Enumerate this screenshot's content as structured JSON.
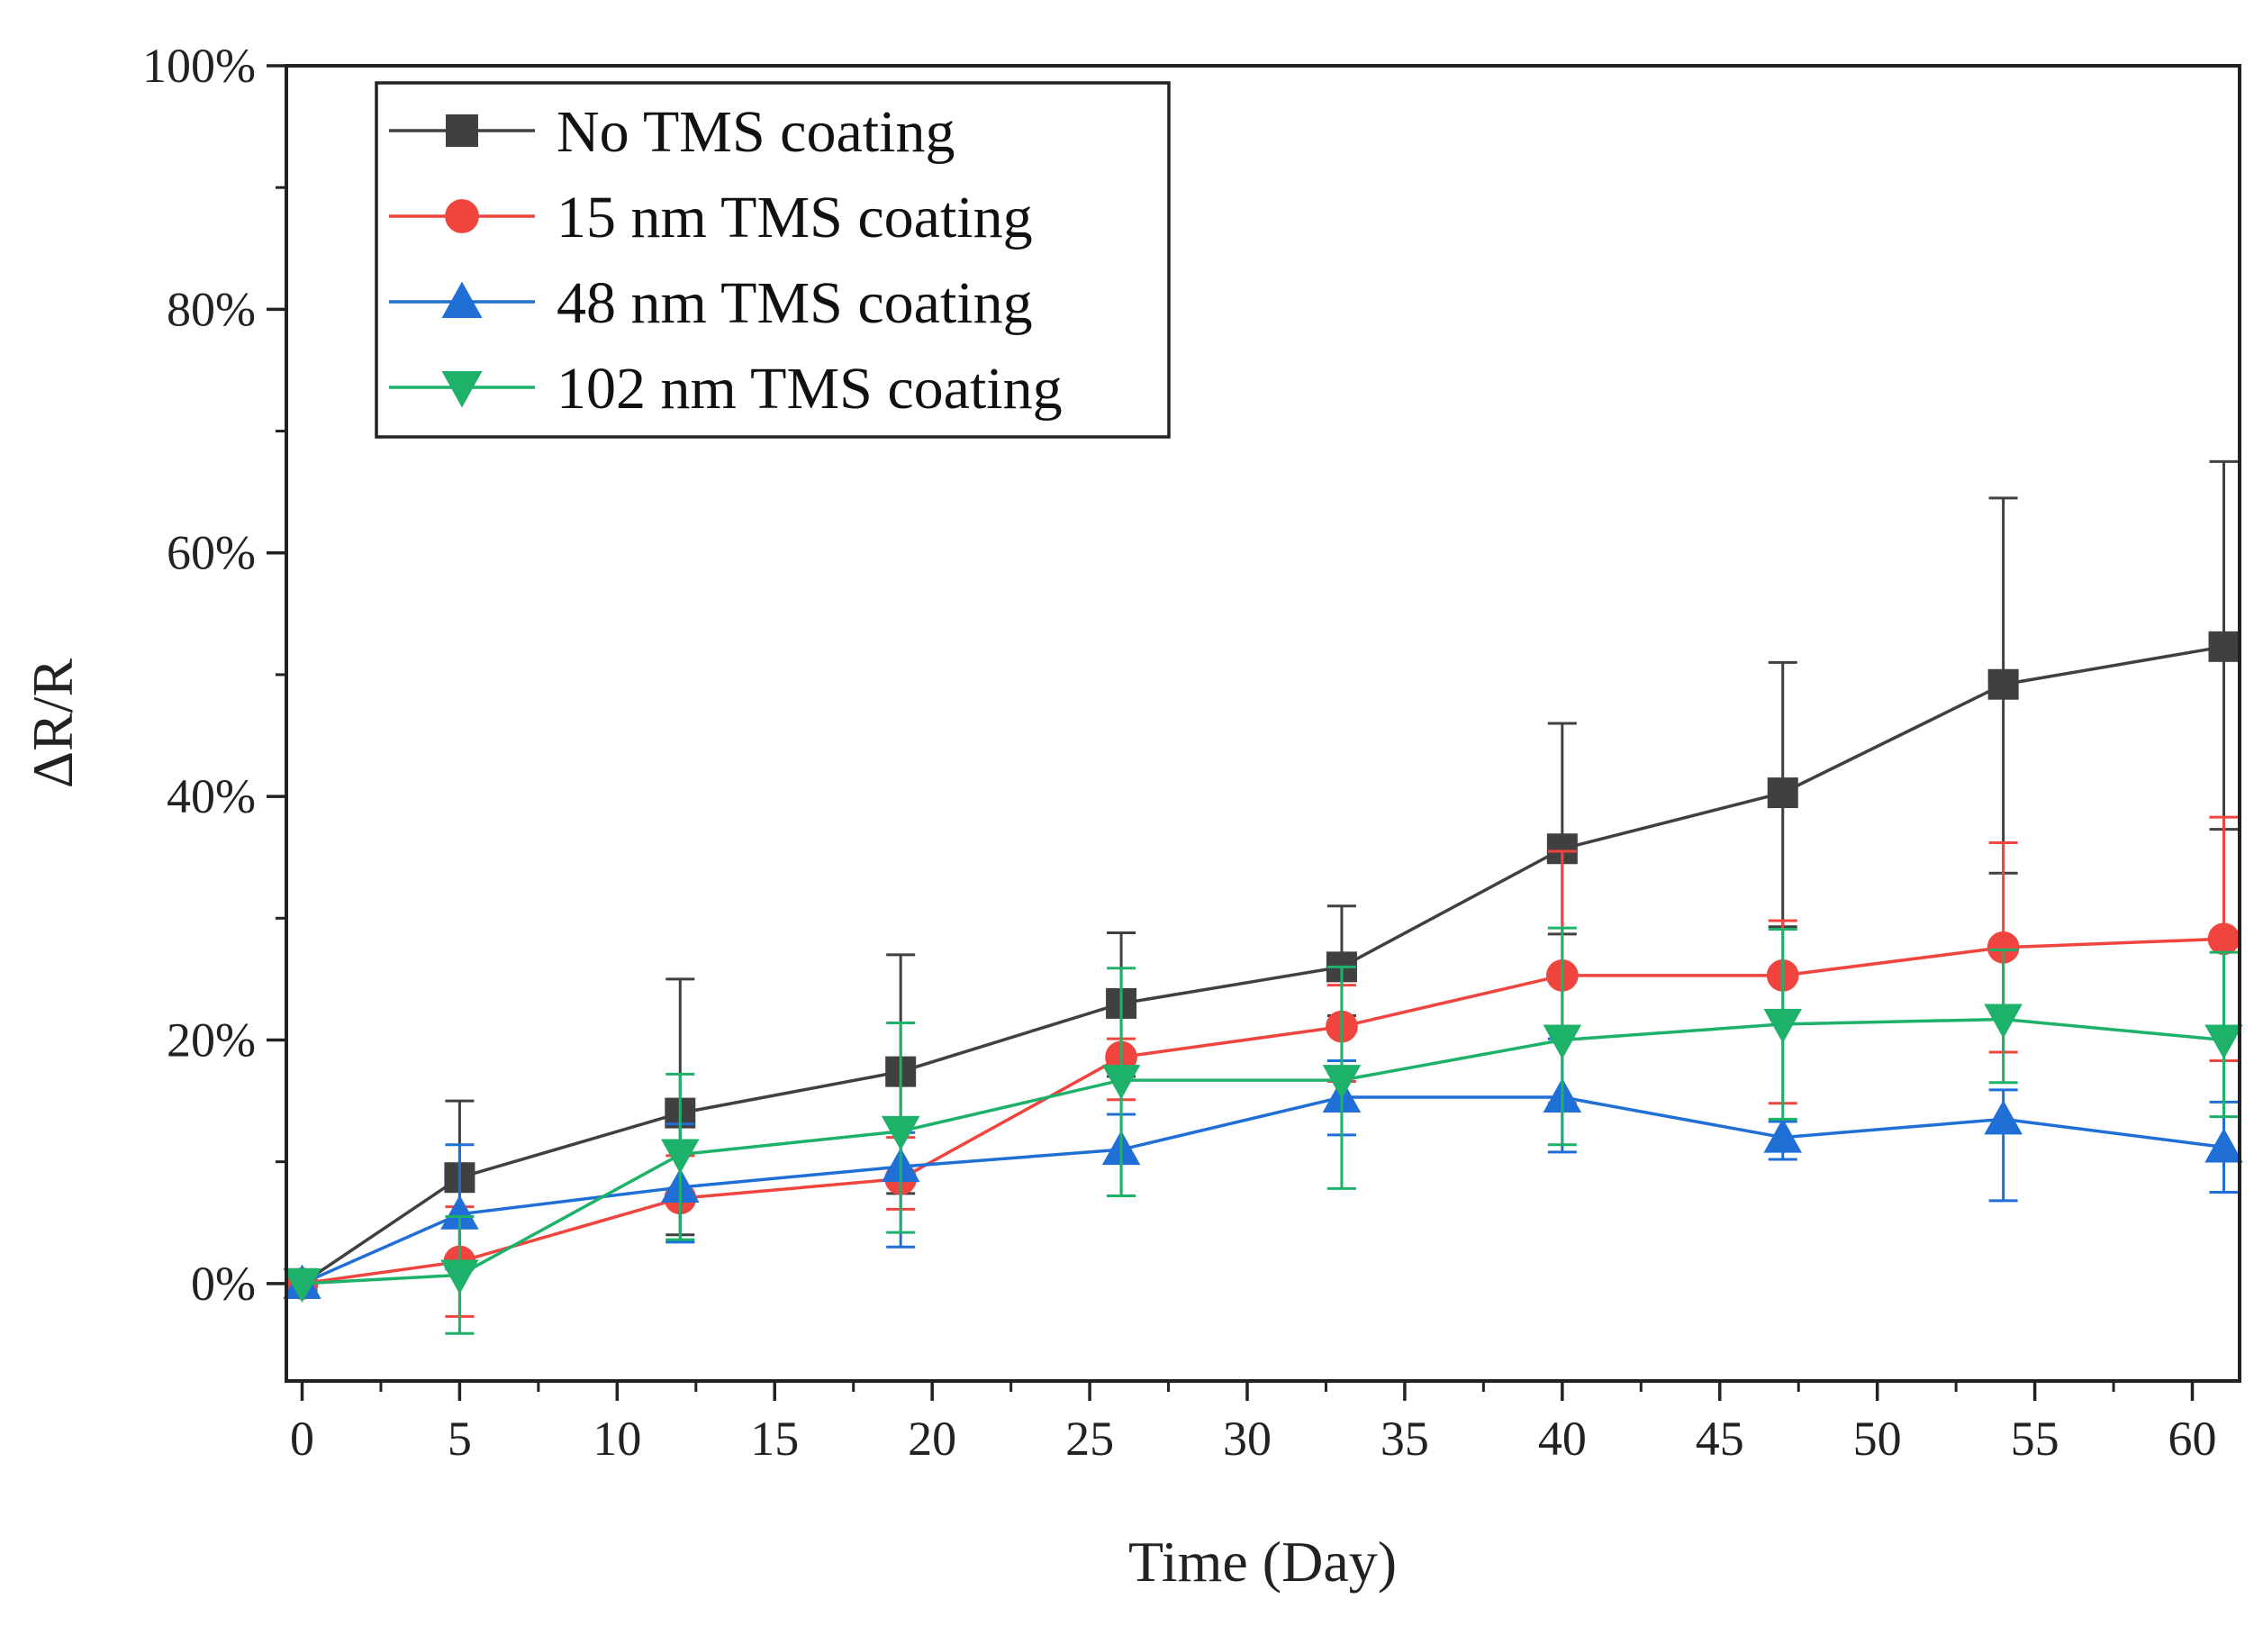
{
  "chart_data": {
    "type": "line",
    "xlabel": "Time (Day)",
    "ylabel": "ΔR/R",
    "xlim": [
      -0.5,
      61.5
    ],
    "ylim": [
      -8,
      100
    ],
    "x_ticks": [
      0,
      5,
      10,
      15,
      20,
      25,
      30,
      35,
      40,
      45,
      50,
      55,
      60
    ],
    "x_tick_labels": [
      "0",
      "5",
      "10",
      "15",
      "20",
      "25",
      "30",
      "35",
      "40",
      "45",
      "50",
      "55",
      "60"
    ],
    "y_ticks": [
      0,
      20,
      40,
      60,
      80,
      100
    ],
    "y_tick_labels": [
      "0%",
      "20%",
      "40%",
      "60%",
      "80%",
      "100%"
    ],
    "grid": false,
    "legend_position": "top-left",
    "x": [
      0,
      5,
      12,
      19,
      26,
      33,
      40,
      47,
      54,
      61
    ],
    "series": [
      {
        "name": "No TMS coating",
        "color": "#404040",
        "marker": "square",
        "values": [
          0,
          8.7,
          14,
          17.4,
          23,
          26,
          35.7,
          40.3,
          49.2,
          52.3
        ],
        "err_low": [
          0,
          7.5,
          10,
          10,
          6,
          4,
          7,
          11,
          15.5,
          15
        ],
        "err_high": [
          0,
          6.3,
          11,
          9.6,
          5.8,
          5,
          10.3,
          10.7,
          15.3,
          15.2
        ]
      },
      {
        "name": "15 nm TMS coating",
        "color": "#f0443e",
        "marker": "circle",
        "values": [
          0,
          1.8,
          7,
          8.6,
          18.6,
          21.1,
          25.3,
          25.3,
          27.6,
          28.3
        ],
        "err_low": [
          0,
          4.5,
          3.5,
          2.5,
          3.5,
          4.5,
          10.5,
          10.5,
          8.6,
          10
        ],
        "err_high": [
          0,
          4.5,
          3.5,
          3.4,
          1.5,
          3.4,
          10.2,
          4.5,
          8.6,
          10
        ]
      },
      {
        "name": "48 nm TMS coating",
        "color": "#1f6fd6",
        "marker": "triangle-up",
        "values": [
          0,
          5.7,
          7.9,
          9.6,
          11,
          15.3,
          15.3,
          12,
          13.5,
          11.2
        ],
        "err_low": [
          0,
          4.5,
          4.5,
          6.6,
          3.8,
          3.1,
          4.5,
          1.8,
          6.7,
          3.7
        ],
        "err_high": [
          0,
          5.7,
          5.2,
          2.8,
          2.9,
          3,
          4.8,
          1.3,
          2.4,
          3.7
        ]
      },
      {
        "name": "102 nm TMS coating",
        "color": "#1db16a",
        "marker": "triangle-down",
        "values": [
          0,
          0.7,
          10.6,
          12.5,
          16.7,
          16.7,
          20,
          21.3,
          21.7,
          20
        ],
        "err_low": [
          0,
          4.8,
          7,
          8.3,
          9.5,
          8.9,
          8.6,
          7.8,
          5.2,
          6.3
        ],
        "err_high": [
          0,
          4.8,
          6.6,
          8.9,
          9.2,
          9.3,
          9.2,
          7.8,
          5.7,
          7.2
        ]
      }
    ]
  }
}
